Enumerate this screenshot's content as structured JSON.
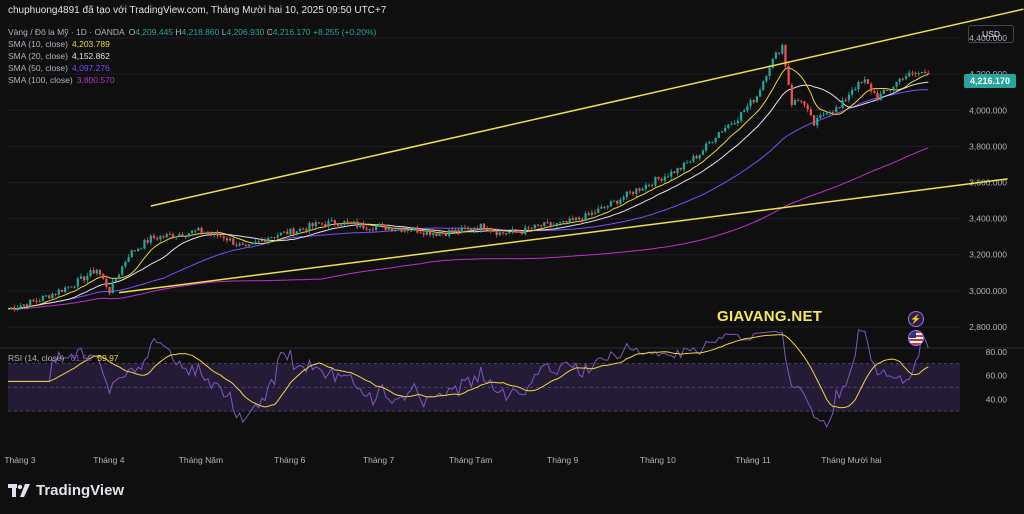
{
  "header": {
    "title": "chuphuong4891 đã tạo với TradingView.com, Tháng Mười hai 10, 2025 09:50 UTC+7"
  },
  "symbol": {
    "name": "Vàng / Đô la Mỹ · 1D · OANDA",
    "open_label": "O",
    "open": "4,209.445",
    "high_label": "H",
    "high": "4,218.860",
    "low_label": "L",
    "low": "4,206.930",
    "close_label": "C",
    "close": "4,216.170",
    "change": "+8.255 (+0.20%)"
  },
  "indicators": [
    {
      "label": "SMA (10, close)",
      "value": "4,203.789",
      "color": "#f2d53c"
    },
    {
      "label": "SMA (20, close)",
      "value": "4,152.862",
      "color": "#e0e3eb"
    },
    {
      "label": "SMA (50, close)",
      "value": "4,097.276",
      "color": "#7c4dff"
    },
    {
      "label": "SMA (100, close)",
      "value": "3,800.570",
      "color": "#c02fd0"
    }
  ],
  "currency": "USD",
  "last_price": "4,216.170",
  "watermark": "GIAVANG.NET",
  "rsi": {
    "label": "RSI (14, close)",
    "value": "61.56",
    "ma": "59.97",
    "line_color": "#7e57c2",
    "ma_color": "#f2d53c"
  },
  "brand": "TradingView",
  "colors": {
    "up": "#26a69a",
    "down": "#ef5350",
    "trendline": "#f0e24a",
    "background": "#0f0f0f"
  },
  "chart_data": {
    "type": "candlestick",
    "price_axis": {
      "ticks": [
        2800,
        3000,
        3200,
        3400,
        3600,
        3800,
        4000,
        4200,
        4400
      ],
      "labels": [
        "2,800.000",
        "3,000.000",
        "3,200.000",
        "3,400.000",
        "3,600.000",
        "3,800.000",
        "4,000.000",
        "4,200.000",
        "4,400.000"
      ],
      "range": [
        2700,
        4500
      ]
    },
    "rsi_axis": {
      "ticks": [
        40,
        60,
        80
      ],
      "labels": [
        "40.00",
        "60.00",
        "80.00"
      ],
      "band": [
        30,
        70
      ]
    },
    "x_labels": [
      "Tháng 3",
      "Tháng 4",
      "Tháng Năm",
      "Tháng 6",
      "Tháng 7",
      "Tháng Tám",
      "Tháng 9",
      "Tháng 10",
      "Tháng 11",
      "Tháng Mười hai"
    ],
    "close_path": [
      [
        0,
        2900
      ],
      [
        8,
        2940
      ],
      [
        15,
        2990
      ],
      [
        22,
        3050
      ],
      [
        28,
        3120
      ],
      [
        32,
        3000
      ],
      [
        38,
        3200
      ],
      [
        45,
        3290
      ],
      [
        52,
        3310
      ],
      [
        60,
        3330
      ],
      [
        68,
        3300
      ],
      [
        75,
        3230
      ],
      [
        82,
        3300
      ],
      [
        90,
        3330
      ],
      [
        98,
        3370
      ],
      [
        105,
        3380
      ],
      [
        112,
        3360
      ],
      [
        120,
        3350
      ],
      [
        128,
        3340
      ],
      [
        135,
        3320
      ],
      [
        142,
        3330
      ],
      [
        150,
        3360
      ],
      [
        155,
        3320
      ],
      [
        162,
        3330
      ],
      [
        168,
        3360
      ],
      [
        175,
        3370
      ],
      [
        182,
        3410
      ],
      [
        190,
        3480
      ],
      [
        198,
        3560
      ],
      [
        205,
        3620
      ],
      [
        212,
        3680
      ],
      [
        218,
        3760
      ],
      [
        224,
        3880
      ],
      [
        230,
        3960
      ],
      [
        236,
        4080
      ],
      [
        240,
        4250
      ],
      [
        244,
        4360
      ],
      [
        247,
        4040
      ],
      [
        250,
        4060
      ],
      [
        254,
        3920
      ],
      [
        258,
        4000
      ],
      [
        262,
        4010
      ],
      [
        266,
        4120
      ],
      [
        270,
        4160
      ],
      [
        274,
        4070
      ],
      [
        278,
        4120
      ],
      [
        282,
        4190
      ],
      [
        286,
        4200
      ],
      [
        290,
        4216
      ]
    ],
    "trendlines": [
      {
        "from": [
          45,
          3470
        ],
        "to": [
          320,
          4560
        ]
      },
      {
        "from": [
          35,
          2990
        ],
        "to": [
          315,
          3620
        ]
      }
    ]
  }
}
